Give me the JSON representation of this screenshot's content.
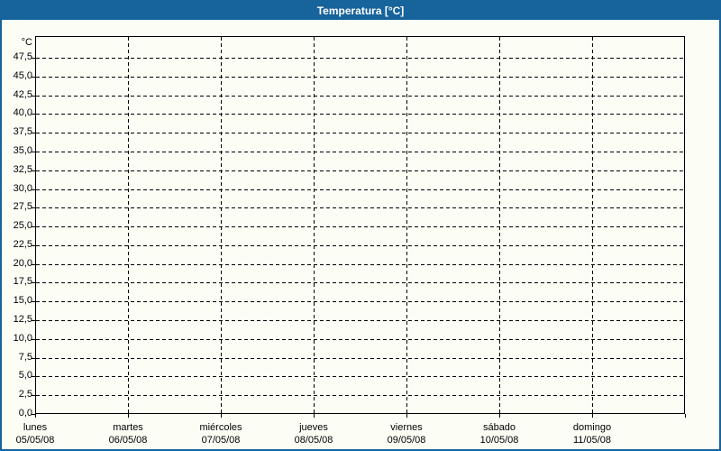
{
  "header": {
    "title": "Temperatura [°C]"
  },
  "colors": {
    "frame_blue": "#17639B",
    "title_text": "#FFFFFF",
    "background": "#FCFEF6",
    "grid": "#000000",
    "text": "#000000"
  },
  "chart_data": {
    "type": "line",
    "title": "Temperatura [°C]",
    "grid": {
      "horizontal": "dashed",
      "vertical": "dashed"
    },
    "legend": "none",
    "series": [],
    "y_axis": {
      "unit": "°C",
      "min": 0,
      "max": 47.5,
      "step": 2.5,
      "decimal_separator": ",",
      "tick_labels": [
        "0,0",
        "2,5",
        "5,0",
        "7,5",
        "10,0",
        "12,5",
        "15,0",
        "17,5",
        "20,0",
        "22,5",
        "25,0",
        "27,5",
        "30,0",
        "32,5",
        "35,0",
        "37,5",
        "40,0",
        "42,5",
        "45,0",
        "47,5"
      ]
    },
    "x_axis": {
      "days": [
        {
          "name": "lunes",
          "date": "05/05/08"
        },
        {
          "name": "martes",
          "date": "06/05/08"
        },
        {
          "name": "miércoles",
          "date": "07/05/08"
        },
        {
          "name": "jueves",
          "date": "08/05/08"
        },
        {
          "name": "viernes",
          "date": "09/05/08"
        },
        {
          "name": "sábado",
          "date": "10/05/08"
        },
        {
          "name": "domingo",
          "date": "11/05/08"
        }
      ]
    }
  }
}
